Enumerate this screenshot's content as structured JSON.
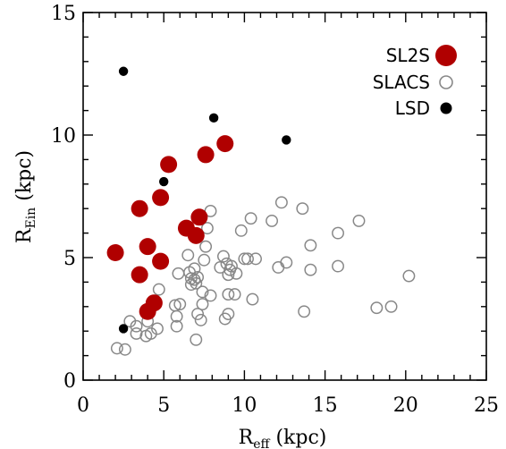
{
  "chart_data": {
    "type": "scatter",
    "xlabel": {
      "main": "R",
      "sub": "eff",
      "rest": " (kpc)"
    },
    "ylabel": {
      "main": "R",
      "sub": "Ein",
      "rest": " (kpc)"
    },
    "xlim": [
      0,
      25
    ],
    "ylim": [
      0,
      15
    ],
    "xticks": [
      0,
      5,
      10,
      15,
      20,
      25
    ],
    "yticks": [
      0,
      5,
      10,
      15
    ],
    "grid": false,
    "legend_position": "top-right",
    "series": [
      {
        "name": "SL2S",
        "marker": "filled-circle-large",
        "color": "#b00000",
        "points": [
          [
            2.0,
            5.2
          ],
          [
            3.5,
            4.3
          ],
          [
            3.5,
            7.0
          ],
          [
            4.0,
            5.45
          ],
          [
            4.0,
            2.8
          ],
          [
            4.4,
            3.15
          ],
          [
            4.8,
            7.45
          ],
          [
            4.8,
            4.85
          ],
          [
            5.3,
            8.8
          ],
          [
            6.4,
            6.2
          ],
          [
            7.0,
            5.9
          ],
          [
            7.2,
            6.65
          ],
          [
            7.6,
            9.2
          ],
          [
            8.8,
            9.65
          ]
        ]
      },
      {
        "name": "SLACS",
        "marker": "open-circle",
        "color": "#888888",
        "points": [
          [
            2.1,
            1.3
          ],
          [
            2.6,
            1.25
          ],
          [
            2.9,
            2.4
          ],
          [
            3.3,
            2.2
          ],
          [
            3.3,
            1.9
          ],
          [
            3.9,
            1.8
          ],
          [
            4.0,
            2.4
          ],
          [
            4.2,
            1.9
          ],
          [
            4.6,
            2.1
          ],
          [
            4.7,
            3.7
          ],
          [
            5.7,
            3.05
          ],
          [
            5.8,
            2.6
          ],
          [
            5.8,
            2.2
          ],
          [
            5.9,
            4.35
          ],
          [
            6.0,
            3.1
          ],
          [
            6.5,
            5.1
          ],
          [
            6.6,
            4.4
          ],
          [
            6.7,
            4.15
          ],
          [
            6.7,
            3.9
          ],
          [
            6.9,
            4.55
          ],
          [
            6.9,
            4.1
          ],
          [
            7.0,
            3.95
          ],
          [
            7.1,
            4.2
          ],
          [
            7.1,
            2.7
          ],
          [
            7.0,
            1.65
          ],
          [
            7.3,
            2.45
          ],
          [
            7.4,
            3.1
          ],
          [
            7.4,
            3.6
          ],
          [
            7.5,
            4.9
          ],
          [
            7.6,
            5.45
          ],
          [
            7.7,
            6.2
          ],
          [
            7.9,
            3.45
          ],
          [
            7.9,
            6.9
          ],
          [
            8.5,
            4.6
          ],
          [
            8.7,
            5.05
          ],
          [
            8.8,
            2.5
          ],
          [
            8.9,
            4.75
          ],
          [
            9.0,
            4.3
          ],
          [
            9.0,
            3.5
          ],
          [
            9.0,
            2.7
          ],
          [
            9.1,
            4.5
          ],
          [
            9.2,
            4.65
          ],
          [
            9.4,
            3.5
          ],
          [
            9.5,
            4.35
          ],
          [
            9.8,
            6.1
          ],
          [
            10.0,
            4.95
          ],
          [
            10.2,
            4.95
          ],
          [
            10.4,
            6.6
          ],
          [
            10.5,
            3.3
          ],
          [
            10.7,
            4.95
          ],
          [
            11.7,
            6.5
          ],
          [
            12.1,
            4.6
          ],
          [
            12.3,
            7.25
          ],
          [
            12.6,
            4.8
          ],
          [
            13.6,
            7.0
          ],
          [
            13.7,
            2.8
          ],
          [
            14.1,
            5.5
          ],
          [
            14.1,
            4.5
          ],
          [
            15.8,
            6.0
          ],
          [
            15.8,
            4.65
          ],
          [
            17.1,
            6.5
          ],
          [
            18.2,
            2.95
          ],
          [
            19.1,
            3.0
          ],
          [
            20.2,
            4.25
          ]
        ]
      },
      {
        "name": "LSD",
        "marker": "filled-circle-small",
        "color": "#000000",
        "points": [
          [
            2.5,
            2.1
          ],
          [
            2.5,
            12.6
          ],
          [
            5.0,
            8.1
          ],
          [
            8.1,
            10.7
          ],
          [
            12.6,
            9.8
          ]
        ]
      }
    ]
  }
}
